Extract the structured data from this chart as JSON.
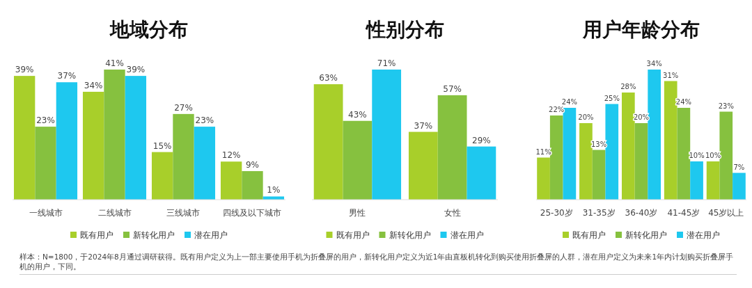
{
  "chart_data": [
    {
      "type": "bar",
      "title": "地域分布",
      "categories": [
        "一线城市",
        "二线城市",
        "三线城市",
        "四线及以下城市"
      ],
      "legend": "bottom",
      "series": [
        {
          "name": "既有用户",
          "color": "#a8cf2a",
          "values": [
            39,
            34,
            15,
            12
          ],
          "value_labels": [
            "39%",
            "34%",
            "15%",
            "12%"
          ]
        },
        {
          "name": "新转化用户",
          "color": "#86c13f",
          "values": [
            23,
            41,
            27,
            9
          ],
          "value_labels": [
            "23%",
            "41%",
            "27%",
            "9%"
          ]
        },
        {
          "name": "潜在用户",
          "color": "#1ec8ef",
          "values": [
            37,
            39,
            23,
            1
          ],
          "value_labels": [
            "37%",
            "39%",
            "23%",
            "1%"
          ]
        }
      ],
      "annotations": [
        "样本：N=1800，于2024年8月通过调研获得。既有用户定义为上一部主要使用手机为折叠屏的用户，新转化用户定义为近1年由直板机转化到购买使用折叠屏的人群，潜在用户定义为未来1年内计划购买折叠屏手机的用户，下同。"
      ]
    },
    {
      "type": "bar",
      "title": "性别分布",
      "categories": [
        "男性",
        "女性"
      ],
      "legend": "bottom",
      "series": [
        {
          "name": "既有用户",
          "color": "#a8cf2a",
          "values": [
            63,
            37
          ],
          "value_labels": [
            "63%",
            "37%"
          ]
        },
        {
          "name": "新转化用户",
          "color": "#86c13f",
          "values": [
            43,
            57
          ],
          "value_labels": [
            "43%",
            "57%"
          ]
        },
        {
          "name": "潜在用户",
          "color": "#1ec8ef",
          "values": [
            71,
            29
          ],
          "value_labels": [
            "71%",
            "29%"
          ]
        }
      ]
    },
    {
      "type": "bar",
      "title": "用户年龄分布",
      "categories": [
        "25-30岁",
        "31-35岁",
        "36-40岁",
        "41-45岁",
        "45岁以上"
      ],
      "legend": "bottom",
      "series": [
        {
          "name": "既有用户",
          "color": "#a8cf2a",
          "values": [
            11,
            20,
            28,
            31,
            10
          ],
          "value_labels": [
            "11%",
            "20%",
            "28%",
            "31%",
            "10%"
          ]
        },
        {
          "name": "新转化用户",
          "color": "#86c13f",
          "values": [
            22,
            13,
            20,
            24,
            23
          ],
          "value_labels": [
            "22%",
            "13%",
            "20%",
            "24%",
            "23%"
          ]
        },
        {
          "name": "潜在用户",
          "color": "#1ec8ef",
          "values": [
            24,
            25,
            34,
            10,
            7
          ],
          "value_labels": [
            "24%",
            "25%",
            "34%",
            "10%",
            "7%"
          ]
        }
      ]
    }
  ]
}
